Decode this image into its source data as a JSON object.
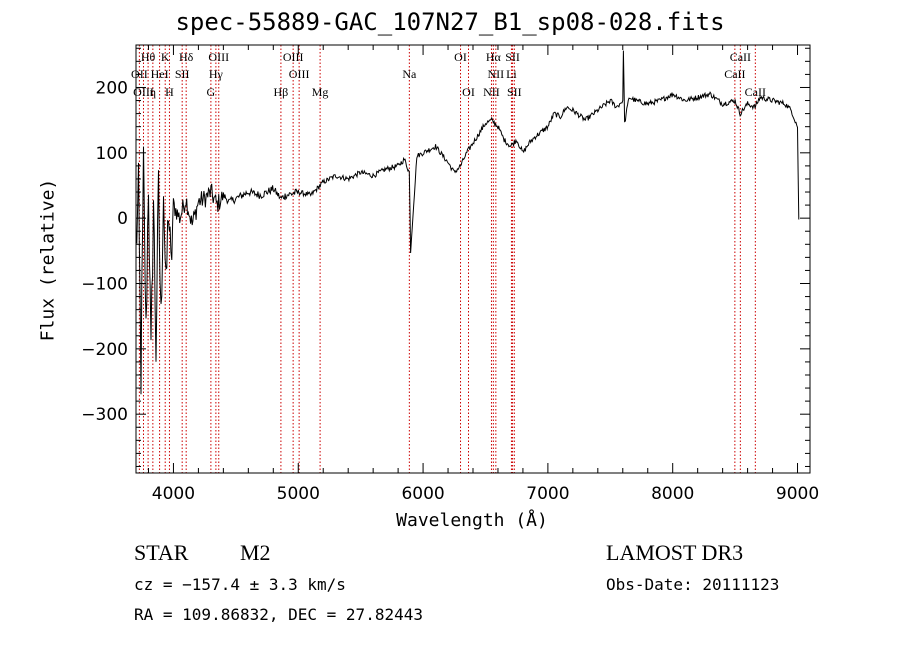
{
  "chart_data": {
    "type": "line",
    "title": "spec-55889-GAC_107N27_B1_sp08-028.fits",
    "xlabel": "Wavelength (Å)",
    "ylabel": "Flux (relative)",
    "xlim": [
      3700,
      9100
    ],
    "ylim": [
      -390,
      265
    ],
    "xticks": [
      4000,
      5000,
      6000,
      7000,
      8000,
      9000
    ],
    "yticks": [
      -300,
      -200,
      -100,
      0,
      100,
      200
    ],
    "grid": false,
    "series": [
      {
        "name": "spectrum",
        "x": [
          3700,
          3720,
          3740,
          3760,
          3780,
          3800,
          3820,
          3840,
          3860,
          3880,
          3900,
          3920,
          3940,
          3960,
          3980,
          4000,
          4050,
          4100,
          4150,
          4200,
          4250,
          4300,
          4350,
          4400,
          4450,
          4500,
          4600,
          4700,
          4800,
          4860,
          4900,
          5000,
          5100,
          5200,
          5300,
          5400,
          5500,
          5600,
          5700,
          5800,
          5850,
          5890,
          5900,
          5950,
          6000,
          6100,
          6200,
          6250,
          6300,
          6350,
          6400,
          6450,
          6500,
          6550,
          6600,
          6650,
          6700,
          6750,
          6800,
          6850,
          6900,
          7000,
          7050,
          7100,
          7150,
          7200,
          7300,
          7400,
          7500,
          7550,
          7600,
          7605,
          7615,
          7650,
          7700,
          7800,
          7900,
          8000,
          8100,
          8200,
          8300,
          8400,
          8500,
          8540,
          8600,
          8660,
          8700,
          8800,
          8900,
          8950,
          9000,
          9010
        ],
        "y": [
          -50,
          40,
          -240,
          80,
          -180,
          60,
          -220,
          30,
          -200,
          40,
          -160,
          50,
          -120,
          20,
          -80,
          20,
          0,
          30,
          -10,
          25,
          30,
          40,
          20,
          35,
          25,
          30,
          40,
          35,
          45,
          30,
          35,
          40,
          35,
          55,
          65,
          60,
          70,
          65,
          75,
          80,
          90,
          70,
          -50,
          95,
          100,
          110,
          85,
          70,
          80,
          100,
          115,
          130,
          145,
          150,
          140,
          120,
          110,
          120,
          100,
          115,
          125,
          140,
          160,
          155,
          170,
          165,
          150,
          165,
          180,
          170,
          180,
          260,
          145,
          185,
          180,
          175,
          180,
          190,
          180,
          185,
          190,
          175,
          180,
          160,
          175,
          170,
          185,
          180,
          175,
          165,
          140,
          -2
        ]
      }
    ],
    "lines": [
      {
        "label": "Hθ",
        "x": 3797,
        "row": 0
      },
      {
        "label": "K",
        "x": 3934,
        "row": 0
      },
      {
        "label": "Hδ",
        "x": 4102,
        "row": 0
      },
      {
        "label": "OIII",
        "x": 4363,
        "row": 0
      },
      {
        "label": "OIII",
        "x": 4959,
        "row": 0
      },
      {
        "label": "OI",
        "x": 6300,
        "row": 0
      },
      {
        "label": "Hα",
        "x": 6563,
        "row": 0
      },
      {
        "label": "SII",
        "x": 6717,
        "row": 0
      },
      {
        "label": "CaII",
        "x": 8542,
        "row": 0
      },
      {
        "label": "OII",
        "x": 3727,
        "row": 1
      },
      {
        "label": "HeI",
        "x": 3889,
        "row": 1
      },
      {
        "label": "SII",
        "x": 4070,
        "row": 1
      },
      {
        "label": "Hγ",
        "x": 4340,
        "row": 1
      },
      {
        "label": "OIII",
        "x": 5007,
        "row": 1
      },
      {
        "label": "Na",
        "x": 5890,
        "row": 1
      },
      {
        "label": "NII",
        "x": 6583,
        "row": 1
      },
      {
        "label": "Li",
        "x": 6708,
        "row": 1
      },
      {
        "label": "CaII",
        "x": 8498,
        "row": 1
      },
      {
        "label": "OIII",
        "x": 3760,
        "row": 2
      },
      {
        "label": "η",
        "x": 3835,
        "row": 2
      },
      {
        "label": "H",
        "x": 3968,
        "row": 2
      },
      {
        "label": "G",
        "x": 4300,
        "row": 2
      },
      {
        "label": "Hβ",
        "x": 4861,
        "row": 2
      },
      {
        "label": "Mg",
        "x": 5175,
        "row": 2
      },
      {
        "label": "OI",
        "x": 6364,
        "row": 2
      },
      {
        "label": "NII",
        "x": 6548,
        "row": 2
      },
      {
        "label": "SII",
        "x": 6731,
        "row": 2
      },
      {
        "label": "CaII",
        "x": 8662,
        "row": 2
      }
    ]
  },
  "info": {
    "class_label": "STAR",
    "subclass": "M2",
    "survey": "LAMOST DR3",
    "cz": "cz = −157.4 ± 3.3 km/s",
    "obs_date": "Obs-Date: 20111123",
    "coords": "RA = 109.86832, DEC =  27.82443"
  },
  "colors": {
    "line": "#000000",
    "marker": "#cc0000"
  }
}
